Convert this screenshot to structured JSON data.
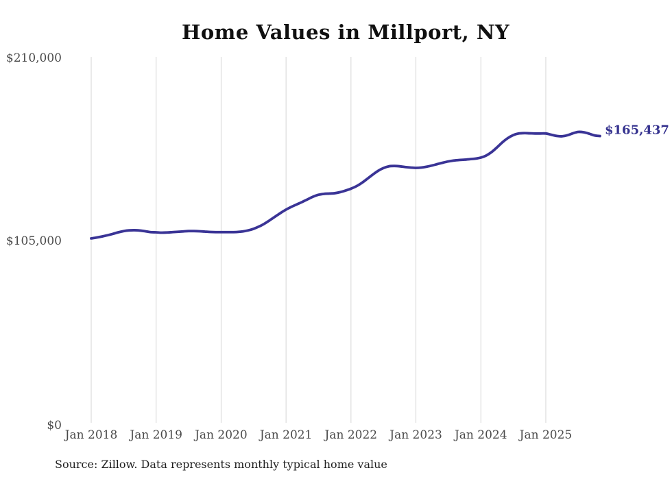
{
  "title": "Home Values in Millport, NY",
  "source_note": "Source: Zillow. Data represents monthly typical home value",
  "colors": {
    "line": "#3a3496",
    "end_label": "#34318e",
    "grid": "#d5d5d5",
    "axis_text": "#4a4a4a",
    "title_text": "#101010",
    "source_text": "#1f1f1f",
    "background": "#ffffff"
  },
  "chart_data": {
    "type": "line",
    "title": "Home Values in Millport, NY",
    "xlabel": "",
    "ylabel": "",
    "legend": "none",
    "grid": "vertical-only",
    "ylim": [
      0,
      210000
    ],
    "y_ticks": [
      {
        "value": 0,
        "label": "$0"
      },
      {
        "value": 105000,
        "label": "$105,000"
      },
      {
        "value": 210000,
        "label": "$210,000"
      }
    ],
    "x_tick_labels": [
      "Jan 2018",
      "Jan 2019",
      "Jan 2020",
      "Jan 2021",
      "Jan 2022",
      "Jan 2023",
      "Jan 2024",
      "Jan 2025"
    ],
    "months_per_tick": 12,
    "x_range": "Jan 2018 through Nov 2025, monthly",
    "end_label": "$165,437",
    "end_value": 165437,
    "series": [
      {
        "name": "Typical home value",
        "values_monthly": [
          106800,
          107300,
          107900,
          108600,
          109400,
          110300,
          111000,
          111400,
          111500,
          111300,
          110900,
          110400,
          110300,
          110100,
          110200,
          110400,
          110600,
          110800,
          111000,
          111000,
          110900,
          110700,
          110500,
          110400,
          110400,
          110400,
          110400,
          110500,
          110800,
          111400,
          112300,
          113600,
          115200,
          117200,
          119300,
          121400,
          123300,
          124900,
          126300,
          127700,
          129200,
          130700,
          131800,
          132300,
          132500,
          132700,
          133300,
          134200,
          135300,
          136700,
          138600,
          140900,
          143300,
          145500,
          147100,
          148100,
          148300,
          148100,
          147700,
          147400,
          147200,
          147400,
          147900,
          148600,
          149400,
          150200,
          150900,
          151400,
          151700,
          151900,
          152200,
          152500,
          153100,
          154300,
          156300,
          159000,
          161900,
          164300,
          166000,
          166900,
          167100,
          167000,
          166900,
          166900,
          166900,
          166200,
          165500,
          165300,
          165900,
          167000,
          167800,
          167600,
          166800,
          165800,
          165437
        ]
      }
    ]
  }
}
